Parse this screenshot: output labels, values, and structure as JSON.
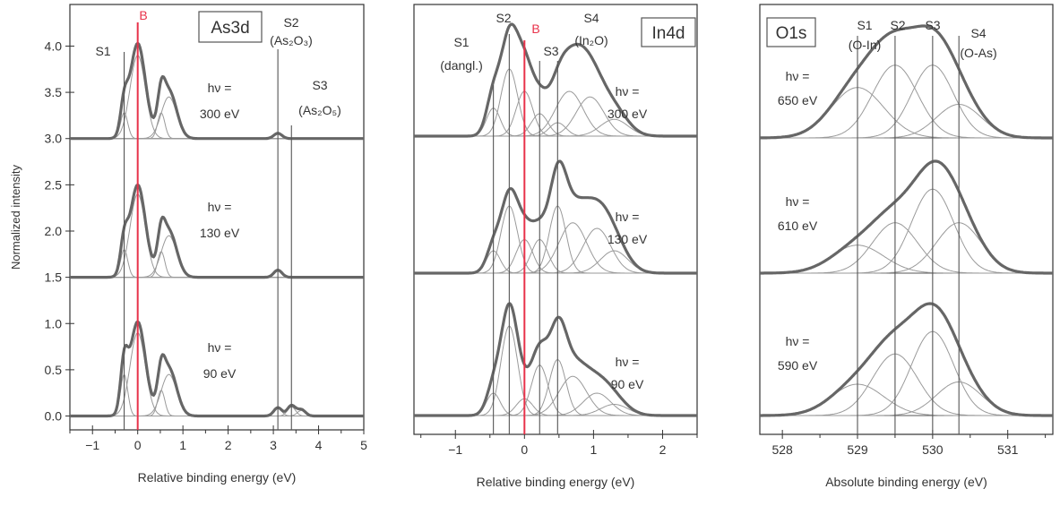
{
  "colors": {
    "envelope": "#666666",
    "component": "#9a9a9a",
    "marker": "#e8324a",
    "axis": "#333333"
  },
  "chart_data": [
    {
      "type": "line",
      "title": "As3d",
      "xlabel": "Relative binding energy (eV)",
      "ylabel": "Normalized intensity",
      "xlim": [
        -1.5,
        5
      ],
      "ylim": [
        -0.15,
        4.45
      ],
      "xticks": [
        -1,
        0,
        1,
        2,
        3,
        4,
        5
      ],
      "yticks": [
        0.0,
        0.5,
        1.0,
        1.5,
        2.0,
        2.5,
        3.0,
        3.5,
        4.0
      ],
      "ytick_labels": [
        "0.0",
        "0.5",
        "1.0",
        "1.5",
        "2.0",
        "2.5",
        "3.0",
        "3.5",
        "4.0"
      ],
      "grid": false,
      "markers": [
        {
          "x": -0.3,
          "label": "S1",
          "color": "dark"
        },
        {
          "x": 0.0,
          "label": "B",
          "color": "red"
        },
        {
          "x": 3.1,
          "label": "S2",
          "sublabel": "(As₂O₃)",
          "color": "dark"
        },
        {
          "x": 3.4,
          "label": "S3",
          "sublabel": "(As₂O₅)",
          "color": "dark"
        }
      ],
      "series": [
        {
          "photon_label": "hν =",
          "photon_energy": "300 eV",
          "offset": 3.0,
          "peak_height": 1.03,
          "components": [
            [
              -0.3,
              0.08,
              0.28
            ],
            [
              0.0,
              0.17,
              0.9
            ],
            [
              0.52,
              0.08,
              0.28
            ],
            [
              0.69,
              0.17,
              0.45
            ],
            [
              3.1,
              0.09,
              0.05
            ]
          ]
        },
        {
          "photon_label": "hν =",
          "photon_energy": "130 eV",
          "offset": 1.5,
          "peak_height": 1.0,
          "components": [
            [
              -0.3,
              0.08,
              0.3
            ],
            [
              0.0,
              0.17,
              0.9
            ],
            [
              0.52,
              0.08,
              0.28
            ],
            [
              0.69,
              0.17,
              0.45
            ],
            [
              3.1,
              0.09,
              0.07
            ]
          ]
        },
        {
          "photon_label": "hν =",
          "photon_energy": "90 eV",
          "offset": 0.0,
          "peak_height": 1.02,
          "components": [
            [
              -0.3,
              0.08,
              0.45
            ],
            [
              0.0,
              0.17,
              0.9
            ],
            [
              0.52,
              0.08,
              0.28
            ],
            [
              0.69,
              0.17,
              0.45
            ],
            [
              3.1,
              0.09,
              0.08
            ],
            [
              3.4,
              0.09,
              0.1
            ],
            [
              3.62,
              0.09,
              0.06
            ]
          ]
        }
      ]
    },
    {
      "type": "line",
      "title": "In4d",
      "xlabel": "Relative binding energy (eV)",
      "xlim": [
        -1.6,
        2.5
      ],
      "xticks": [
        -1,
        0,
        1,
        2
      ],
      "grid": false,
      "markers": [
        {
          "x": -0.45,
          "label": "S1",
          "sublabel": "(dangl.)",
          "color": "dark"
        },
        {
          "x": -0.22,
          "label": "S2",
          "color": "dark"
        },
        {
          "x": 0.0,
          "label": "B",
          "color": "red"
        },
        {
          "x": 0.22,
          "label": "S3",
          "color": "dark"
        },
        {
          "x": 0.48,
          "label": "S4",
          "sublabel": "(In₂O)",
          "color": "dark"
        }
      ],
      "series": [
        {
          "photon_label": "hν =",
          "photon_energy": "300 eV",
          "level": 3,
          "peak_height": 1.0,
          "components": [
            [
              -0.45,
              0.1,
              0.25
            ],
            [
              -0.22,
              0.12,
              0.6
            ],
            [
              0.0,
              0.12,
              0.4
            ],
            [
              0.22,
              0.12,
              0.2
            ],
            [
              0.48,
              0.12,
              0.12
            ],
            [
              0.65,
              0.2,
              0.4
            ],
            [
              0.95,
              0.2,
              0.35
            ],
            [
              1.3,
              0.2,
              0.15
            ]
          ]
        },
        {
          "photon_label": "hν =",
          "photon_energy": "130 eV",
          "level": 2,
          "peak_height": 1.0,
          "components": [
            [
              -0.45,
              0.1,
              0.2
            ],
            [
              -0.22,
              0.12,
              0.6
            ],
            [
              0.0,
              0.12,
              0.3
            ],
            [
              0.22,
              0.12,
              0.3
            ],
            [
              0.48,
              0.12,
              0.6
            ],
            [
              0.7,
              0.2,
              0.45
            ],
            [
              1.05,
              0.2,
              0.4
            ],
            [
              1.3,
              0.2,
              0.2
            ]
          ]
        },
        {
          "photon_label": "hν =",
          "photon_energy": "90 eV",
          "level": 1,
          "peak_height": 1.0,
          "components": [
            [
              -0.45,
              0.1,
              0.2
            ],
            [
              -0.22,
              0.12,
              0.8
            ],
            [
              0.0,
              0.12,
              0.15
            ],
            [
              0.22,
              0.12,
              0.45
            ],
            [
              0.48,
              0.12,
              0.5
            ],
            [
              0.7,
              0.2,
              0.35
            ],
            [
              1.05,
              0.2,
              0.2
            ],
            [
              1.3,
              0.2,
              0.1
            ]
          ]
        }
      ]
    },
    {
      "type": "line",
      "title": "O1s",
      "xlabel": "Absolute binding energy (eV)",
      "xlim": [
        527.7,
        531.6
      ],
      "xticks": [
        528,
        529,
        530,
        531
      ],
      "grid": false,
      "markers": [
        {
          "x": 529.0,
          "label": "S1",
          "sublabel": "(O-In)",
          "color": "dark"
        },
        {
          "x": 529.5,
          "label": "S2",
          "color": "dark"
        },
        {
          "x": 530.0,
          "label": "S3",
          "color": "dark"
        },
        {
          "x": 530.35,
          "label": "S4",
          "sublabel": "(O-As)",
          "color": "dark"
        }
      ],
      "series": [
        {
          "photon_label": "hν =",
          "photon_energy": "650 eV",
          "level": 3,
          "peak_height": 1.0,
          "components": [
            [
              529.0,
              0.35,
              0.45
            ],
            [
              529.5,
              0.3,
              0.65
            ],
            [
              530.0,
              0.28,
              0.65
            ],
            [
              530.35,
              0.3,
              0.3
            ]
          ]
        },
        {
          "photon_label": "hν =",
          "photon_energy": "610 eV",
          "level": 2,
          "peak_height": 1.0,
          "components": [
            [
              529.0,
              0.35,
              0.25
            ],
            [
              529.5,
              0.3,
              0.45
            ],
            [
              530.0,
              0.28,
              0.75
            ],
            [
              530.35,
              0.3,
              0.45
            ]
          ]
        },
        {
          "photon_label": "hν =",
          "photon_energy": "590 eV",
          "level": 1,
          "peak_height": 1.0,
          "components": [
            [
              529.0,
              0.35,
              0.28
            ],
            [
              529.5,
              0.3,
              0.55
            ],
            [
              530.0,
              0.28,
              0.75
            ],
            [
              530.35,
              0.3,
              0.3
            ]
          ]
        }
      ]
    }
  ]
}
